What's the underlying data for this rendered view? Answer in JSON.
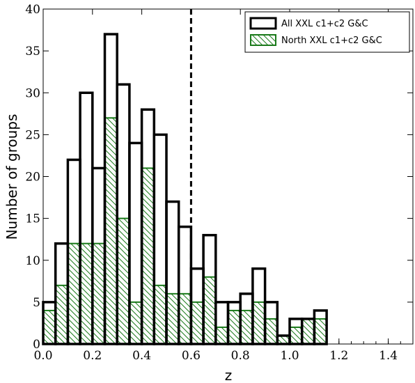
{
  "chart_data": {
    "type": "bar",
    "xlabel": "z",
    "ylabel": "Number of groups",
    "xlim": [
      0.0,
      1.5
    ],
    "ylim": [
      0,
      40
    ],
    "xticks": [
      "0.0",
      "0.2",
      "0.4",
      "0.6",
      "0.8",
      "1.0",
      "1.2",
      "1.4"
    ],
    "yticks": [
      "0",
      "5",
      "10",
      "15",
      "20",
      "25",
      "30",
      "35",
      "40"
    ],
    "bin_width": 0.05,
    "bin_start": 0.0,
    "dashed_line_x": 0.6,
    "legend_position": "top-right",
    "series": [
      {
        "name": "All XXL c1+c2 G&C",
        "style": "outline",
        "color": "#000000",
        "values": [
          5,
          12,
          22,
          30,
          21,
          37,
          31,
          24,
          28,
          25,
          17,
          14,
          9,
          13,
          5,
          5,
          6,
          9,
          5,
          1,
          3,
          3,
          4,
          0,
          0,
          0,
          0,
          0,
          0
        ]
      },
      {
        "name": "North XXL c1+c2 G&C",
        "style": "hatched",
        "color": "#1a7a1a",
        "values": [
          4,
          7,
          12,
          12,
          12,
          27,
          15,
          5,
          21,
          7,
          6,
          6,
          5,
          8,
          2,
          4,
          4,
          5,
          3,
          1,
          2,
          3,
          3,
          0,
          0,
          0,
          0,
          0,
          0
        ]
      }
    ]
  }
}
